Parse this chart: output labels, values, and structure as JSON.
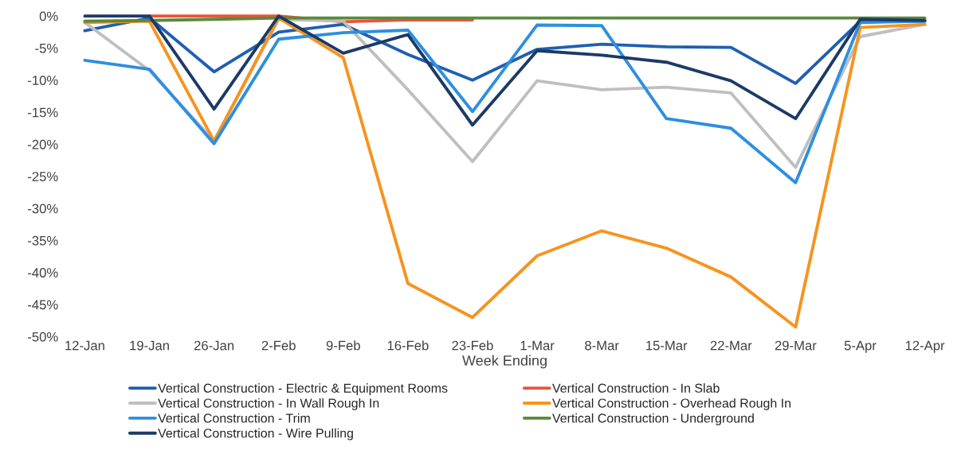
{
  "chart_data": {
    "type": "line",
    "xlabel": "Week Ending",
    "categories": [
      "12-Jan",
      "19-Jan",
      "26-Jan",
      "2-Feb",
      "9-Feb",
      "16-Feb",
      "23-Feb",
      "1-Mar",
      "8-Mar",
      "15-Mar",
      "22-Mar",
      "29-Mar",
      "5-Apr",
      "12-Apr"
    ],
    "series": [
      {
        "name": "Vertical Construction - Electric & Equipment Rooms",
        "color": "#1f5fb0",
        "values": [
          -2.3,
          -0.3,
          -8.7,
          -2.5,
          -1.3,
          -6,
          -10,
          -5.2,
          -4.4,
          -4.8,
          -4.9,
          -10.5,
          -0.8,
          -0.8
        ]
      },
      {
        "name": "Vertical Construction - In Slab",
        "color": "#e8553c",
        "values": [
          null,
          0,
          0,
          0,
          -0.9,
          -0.6,
          -0.6,
          null,
          null,
          null,
          null,
          null,
          null,
          null
        ]
      },
      {
        "name": "Vertical Construction - In Wall Rough In",
        "color": "#bfbfbf",
        "values": [
          -1,
          -8.5,
          -19.5,
          -0.5,
          -0.8,
          -11.5,
          -22.7,
          -10.1,
          -11.5,
          -11.1,
          -12,
          -23.6,
          -3.2,
          -1.3
        ]
      },
      {
        "name": "Vertical Construction - Overhead Rough In",
        "color": "#f7931e",
        "values": [
          -1,
          -0.8,
          -19.5,
          -0.3,
          -6.5,
          -41.7,
          -47,
          -37.4,
          -33.5,
          -36.2,
          -40.7,
          -48.5,
          -1.8,
          -1.3
        ]
      },
      {
        "name": "Vertical Construction - Trim",
        "color": "#2e8fe0",
        "values": [
          -6.9,
          -8.3,
          -19.9,
          -3.6,
          -2.6,
          -2.2,
          -14.9,
          -1.4,
          -1.5,
          -16,
          -17.5,
          -26,
          -1,
          -0.8
        ]
      },
      {
        "name": "Vertical Construction - Underground",
        "color": "#5a8a3a",
        "values": [
          -0.8,
          -0.7,
          -0.5,
          -0.3,
          -0.3,
          -0.3,
          -0.3,
          -0.3,
          -0.3,
          -0.3,
          -0.3,
          -0.3,
          -0.3,
          -0.3
        ]
      },
      {
        "name": "Vertical Construction - Wire Pulling",
        "color": "#1c3a66",
        "values": [
          0,
          0,
          -14.5,
          0,
          -5.8,
          -2.9,
          -17,
          -5.4,
          -6.1,
          -7.2,
          -10.1,
          -16,
          -0.5,
          -0.7
        ]
      }
    ],
    "ylim": [
      -50,
      0
    ],
    "yticks": [
      {
        "value": 0,
        "label": "0%"
      },
      {
        "value": -5,
        "label": "-5%"
      },
      {
        "value": -10,
        "label": "-10%"
      },
      {
        "value": -15,
        "label": "-15%"
      },
      {
        "value": -20,
        "label": "-20%"
      },
      {
        "value": -25,
        "label": "-25%"
      },
      {
        "value": -30,
        "label": "-30%"
      },
      {
        "value": -35,
        "label": "-35%"
      },
      {
        "value": -40,
        "label": "-40%"
      },
      {
        "value": -45,
        "label": "-45%"
      },
      {
        "value": -50,
        "label": "-50%"
      }
    ],
    "grid": false,
    "legend": "bottom",
    "marker": "none",
    "line_style": "solid"
  }
}
